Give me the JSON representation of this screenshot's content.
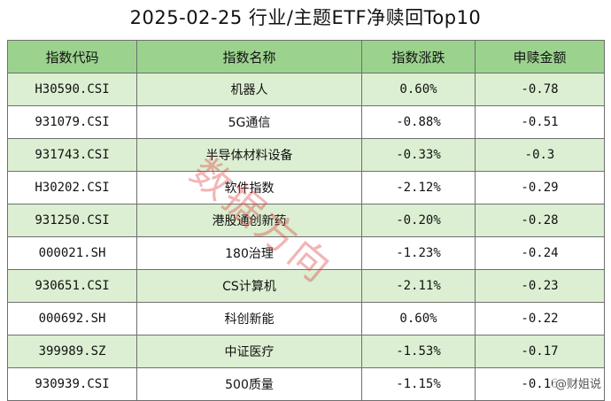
{
  "title": "2025-02-25 行业/主题ETF净赎回Top10",
  "headers": [
    "指数代码",
    "指数名称",
    "指数涨跌",
    "申赎金额"
  ],
  "rows": [
    {
      "code": "H30590.CSI",
      "name": "机器人",
      "change": "0.60%",
      "amount": "-0.78"
    },
    {
      "code": "931079.CSI",
      "name": "5G通信",
      "change": "-0.88%",
      "amount": "-0.51"
    },
    {
      "code": "931743.CSI",
      "name": "半导体材料设备",
      "change": "-0.33%",
      "amount": "-0.3"
    },
    {
      "code": "H30202.CSI",
      "name": "软件指数",
      "change": "-2.12%",
      "amount": "-0.29"
    },
    {
      "code": "931250.CSI",
      "name": "港股通创新药",
      "change": "-0.20%",
      "amount": "-0.28"
    },
    {
      "code": "000021.SH",
      "name": "180治理",
      "change": "-1.23%",
      "amount": "-0.24"
    },
    {
      "code": "930651.CSI",
      "name": "CS计算机",
      "change": "-2.11%",
      "amount": "-0.23"
    },
    {
      "code": "000692.SH",
      "name": "科创新能",
      "change": "0.60%",
      "amount": "-0.22"
    },
    {
      "code": "399989.SZ",
      "name": "中证医疗",
      "change": "-1.53%",
      "amount": "-0.17"
    },
    {
      "code": "930939.CSI",
      "name": "500质量",
      "change": "-1.15%",
      "amount": "-0.16"
    }
  ],
  "watermark": "数据方向",
  "source": "@财姐说",
  "colors": {
    "header_bg": "#9bd38e",
    "odd_row_bg": "#dcefd2",
    "even_row_bg": "#ffffff",
    "watermark": "#dc3c3c"
  }
}
